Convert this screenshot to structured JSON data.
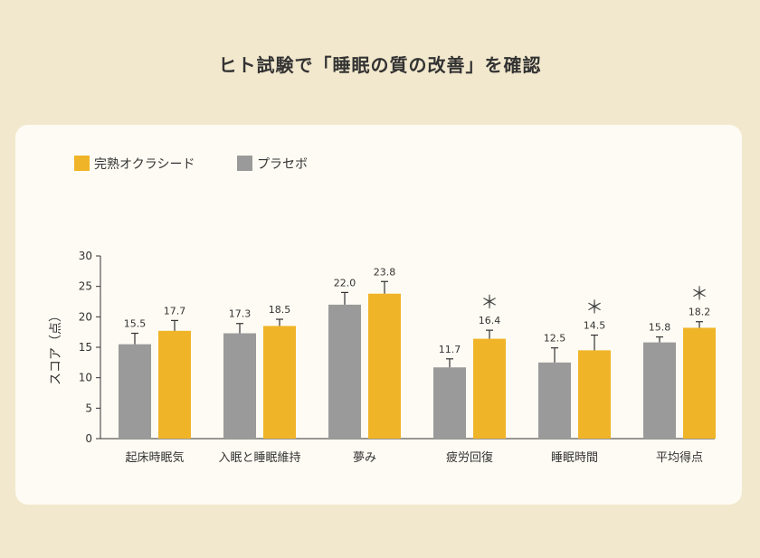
{
  "title": "ヒト試験で「睡眠の質の改善」を確認",
  "chart_data": {
    "type": "bar",
    "ylabel": "スコア（点）",
    "ylim": [
      0,
      30
    ],
    "yticks": [
      0,
      5,
      10,
      15,
      20,
      25,
      30
    ],
    "categories": [
      "起床時眠気",
      "入眠と睡眠維持",
      "夢み",
      "疲労回復",
      "睡眠時間",
      "平均得点"
    ],
    "series": [
      {
        "name": "プラセボ",
        "color": "#9a9a9a",
        "values": [
          15.5,
          17.3,
          22.0,
          11.7,
          12.5,
          15.8
        ],
        "labels": [
          "15.5",
          "17.3",
          "22.0",
          "11.7",
          "12.5",
          "15.8"
        ],
        "errors": [
          1.8,
          1.6,
          2.0,
          1.4,
          2.4,
          0.9
        ]
      },
      {
        "name": "完熟オクラシード",
        "color": "#f0b428",
        "values": [
          17.7,
          18.5,
          23.8,
          16.4,
          14.5,
          18.2
        ],
        "labels": [
          "17.7",
          "18.5",
          "23.8",
          "16.4",
          "14.5",
          "18.2"
        ],
        "errors": [
          1.7,
          1.1,
          2.0,
          1.4,
          2.5,
          1.0
        ]
      }
    ],
    "legend_order": [
      1,
      0
    ],
    "significance": [
      false,
      false,
      false,
      true,
      true,
      true
    ],
    "significance_mark": "＊",
    "grid": false,
    "legend_position": "top-left"
  }
}
